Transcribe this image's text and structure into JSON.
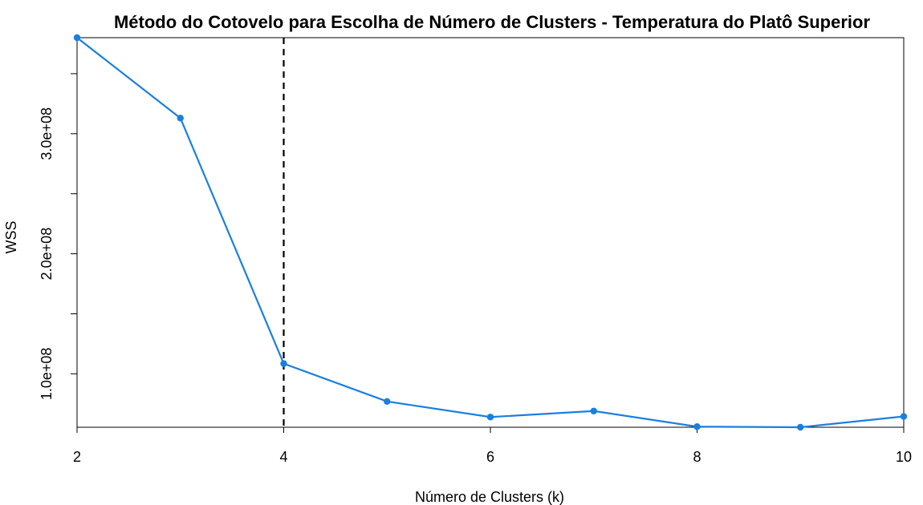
{
  "chart_data": {
    "type": "line",
    "title": "Método do Cotovelo para Escolha de Número de Clusters - Temperatura do Platô Superior",
    "xlabel": "Número de Clusters (k)",
    "ylabel": "WSS",
    "x": [
      2,
      3,
      4,
      5,
      6,
      7,
      8,
      9,
      10
    ],
    "series": [
      {
        "values": [
          380000000,
          313000000,
          108500000,
          77000000,
          64000000,
          69000000,
          56000000,
          55500000,
          64500000
        ]
      }
    ],
    "xlim": [
      2,
      10
    ],
    "ylim": [
      55500000,
      380000000
    ],
    "x_ticks": [
      2,
      4,
      6,
      8,
      10
    ],
    "x_tick_labels": [
      "2",
      "4",
      "6",
      "8",
      "10"
    ],
    "y_ticks": [
      100000000,
      200000000,
      300000000
    ],
    "y_tick_labels": [
      "1.0e+08",
      "2.0e+08",
      "3.0e+08"
    ],
    "y_minor_ticks": [
      50000000,
      150000000,
      250000000,
      350000000
    ],
    "reference_line": {
      "x": 4,
      "style": "dashed",
      "color": "#000000"
    },
    "grid": false,
    "line_color": "#1a7fe0"
  }
}
